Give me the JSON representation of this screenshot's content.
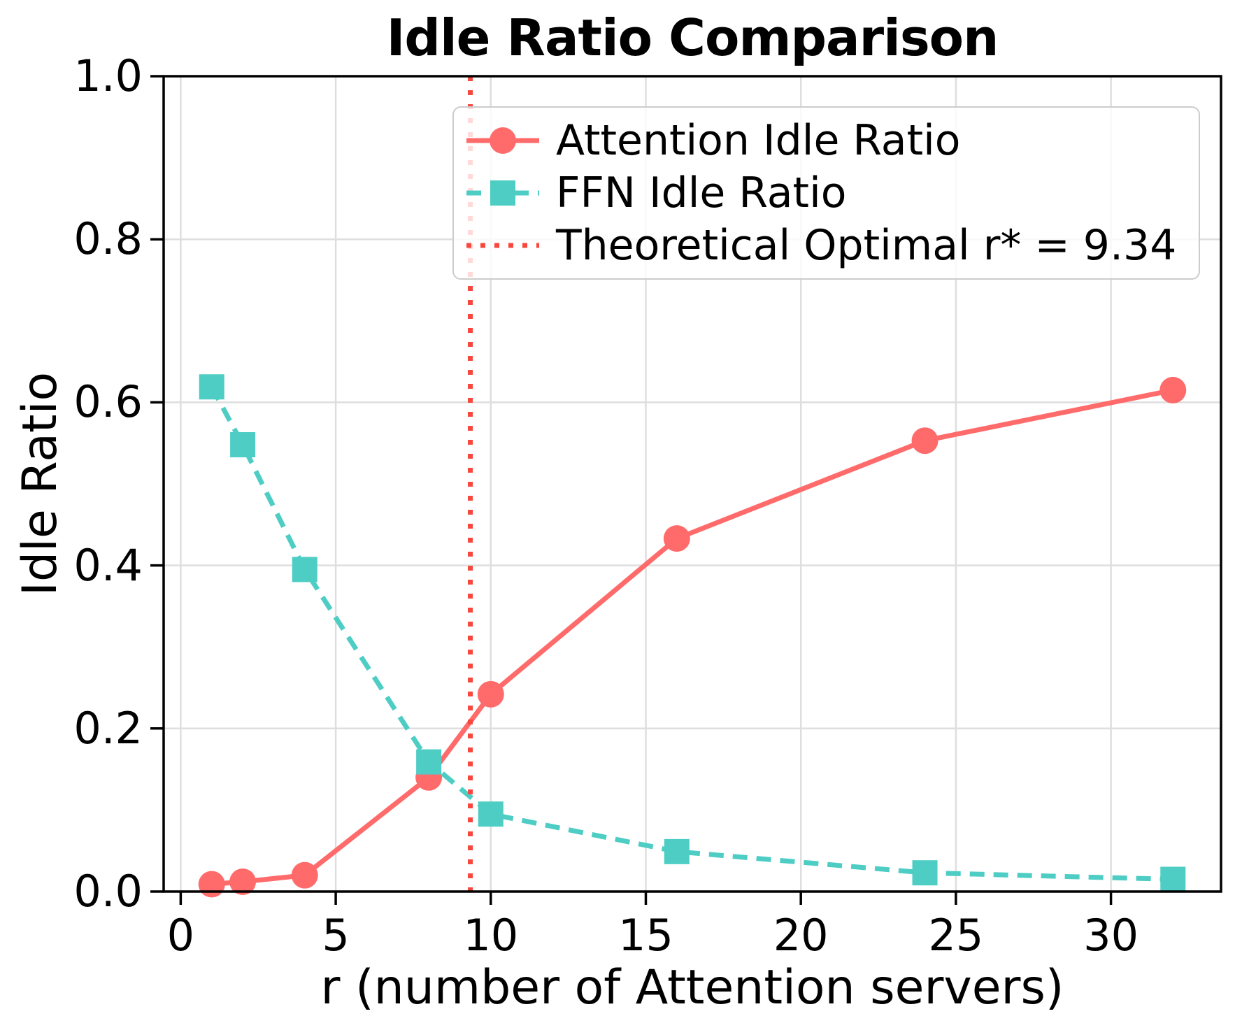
{
  "chart_data": {
    "type": "line",
    "title": "Idle Ratio Comparison",
    "xlabel": "r (number of Attention servers)",
    "ylabel": "Idle Ratio",
    "x": [
      1,
      2,
      4,
      8,
      10,
      16,
      24,
      32
    ],
    "series": [
      {
        "name": "Attention Idle Ratio",
        "color": "#FF6B6B",
        "marker": "circle",
        "line_style": "solid",
        "values": [
          0.009,
          0.012,
          0.02,
          0.14,
          0.242,
          0.433,
          0.553,
          0.615
        ]
      },
      {
        "name": "FFN Idle Ratio",
        "color": "#4ECDC4",
        "marker": "square",
        "line_style": "dashed",
        "values": [
          0.619,
          0.548,
          0.395,
          0.159,
          0.095,
          0.049,
          0.023,
          0.015
        ]
      }
    ],
    "vline": {
      "x": 9.34,
      "label": "Theoretical Optimal r* = 9.34",
      "color": "#F8473D",
      "line_style": "dotted"
    },
    "xticks": [
      0,
      5,
      10,
      15,
      20,
      25,
      30
    ],
    "ytick_labels": [
      "0.0",
      "0.2",
      "0.4",
      "0.6",
      "0.8",
      "1.0"
    ],
    "ytick_values": [
      0.0,
      0.2,
      0.4,
      0.6,
      0.8,
      1.0
    ],
    "xlim": [
      -0.55,
      33.55
    ],
    "ylim": [
      0.0,
      1.0
    ],
    "grid": true,
    "grid_color": "#DEDEDE",
    "spine_color": "#000000",
    "legend_position": "upper right"
  }
}
